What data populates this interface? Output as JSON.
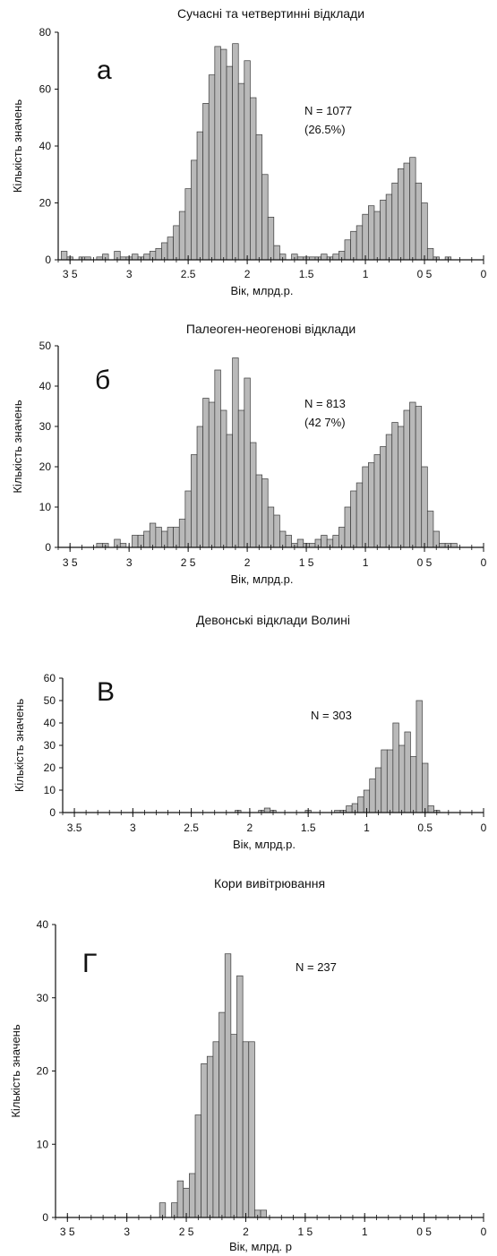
{
  "colors": {
    "bar_fill": "#b9b9b9",
    "bar_edge": "#3a3a3a",
    "axis": "#111111"
  },
  "chart_data": [
    {
      "type": "bar",
      "panel_letter": "а",
      "title": "Сучасні та четвертинні відклади",
      "xlabel": "Вік, млрд.р.",
      "ylabel": "Кількість значень",
      "xlim": [
        3.6,
        0
      ],
      "ylim": [
        0,
        80
      ],
      "xticks": [
        3.5,
        3,
        2.5,
        2,
        1.5,
        1,
        0.5,
        0
      ],
      "xtick_labels": [
        "3 5",
        "3",
        "2.5",
        "2",
        "1.5",
        "1",
        "0 5",
        "0"
      ],
      "yticks": [
        0,
        20,
        40,
        60,
        80
      ],
      "ytick_labels": [
        "0",
        "20",
        "40",
        "60",
        "80"
      ],
      "annotation": [
        "N = 1077",
        "(26.5%)"
      ],
      "x": [
        3.55,
        3.5,
        3.45,
        3.4,
        3.35,
        3.3,
        3.25,
        3.2,
        3.15,
        3.1,
        3.05,
        3.0,
        2.95,
        2.9,
        2.85,
        2.8,
        2.75,
        2.7,
        2.65,
        2.6,
        2.55,
        2.5,
        2.45,
        2.4,
        2.35,
        2.3,
        2.25,
        2.2,
        2.15,
        2.1,
        2.05,
        2.0,
        1.95,
        1.9,
        1.85,
        1.8,
        1.75,
        1.7,
        1.65,
        1.6,
        1.55,
        1.5,
        1.45,
        1.4,
        1.35,
        1.3,
        1.25,
        1.2,
        1.15,
        1.1,
        1.05,
        1.0,
        0.95,
        0.9,
        0.85,
        0.8,
        0.75,
        0.7,
        0.65,
        0.6,
        0.55,
        0.5,
        0.45,
        0.4,
        0.35,
        0.3,
        0.25,
        0.2,
        0.15
      ],
      "values": [
        3,
        1,
        0,
        1,
        1,
        0,
        1,
        2,
        0,
        3,
        1,
        1,
        2,
        1,
        2,
        3,
        4,
        6,
        8,
        12,
        17,
        25,
        35,
        45,
        55,
        65,
        75,
        74,
        68,
        76,
        62,
        70,
        57,
        44,
        30,
        15,
        5,
        2,
        0,
        2,
        1,
        1,
        1,
        1,
        2,
        1,
        2,
        3,
        7,
        10,
        12,
        16,
        19,
        17,
        21,
        23,
        27,
        32,
        34,
        36,
        27,
        20,
        4,
        1,
        0,
        1,
        0,
        0,
        0
      ]
    },
    {
      "type": "bar",
      "panel_letter": "б",
      "title": "Палеоген-неогенові відклади",
      "xlabel": "Вік, млрд.р.",
      "ylabel": "Кількість значень",
      "xlim": [
        3.6,
        0
      ],
      "ylim": [
        0,
        50
      ],
      "xticks": [
        3.5,
        3,
        2.5,
        2,
        1.5,
        1,
        0.5,
        0
      ],
      "xtick_labels": [
        "3 5",
        "3",
        "2 5",
        "2",
        "1 5",
        "1",
        "0 5",
        "0"
      ],
      "yticks": [
        0,
        10,
        20,
        30,
        40,
        50
      ],
      "ytick_labels": [
        "0",
        "10",
        "20",
        "30",
        "40",
        "50"
      ],
      "annotation": [
        "N = 813",
        "(42 7%)"
      ],
      "x": [
        3.55,
        3.5,
        3.45,
        3.4,
        3.35,
        3.3,
        3.25,
        3.2,
        3.15,
        3.1,
        3.05,
        3.0,
        2.95,
        2.9,
        2.85,
        2.8,
        2.75,
        2.7,
        2.65,
        2.6,
        2.55,
        2.5,
        2.45,
        2.4,
        2.35,
        2.3,
        2.25,
        2.2,
        2.15,
        2.1,
        2.05,
        2.0,
        1.95,
        1.9,
        1.85,
        1.8,
        1.75,
        1.7,
        1.65,
        1.6,
        1.55,
        1.5,
        1.45,
        1.4,
        1.35,
        1.3,
        1.25,
        1.2,
        1.15,
        1.1,
        1.05,
        1.0,
        0.95,
        0.9,
        0.85,
        0.8,
        0.75,
        0.7,
        0.65,
        0.6,
        0.55,
        0.5,
        0.45,
        0.4,
        0.35,
        0.3,
        0.25,
        0.2
      ],
      "values": [
        0,
        0,
        0,
        0,
        0,
        0,
        1,
        1,
        0,
        2,
        1,
        0,
        3,
        3,
        4,
        6,
        5,
        4,
        5,
        5,
        7,
        14,
        23,
        30,
        37,
        36,
        44,
        34,
        28,
        47,
        34,
        42,
        26,
        18,
        17,
        10,
        8,
        4,
        3,
        1,
        2,
        1,
        1,
        2,
        3,
        2,
        3,
        5,
        10,
        14,
        16,
        20,
        21,
        23,
        25,
        28,
        31,
        30,
        34,
        36,
        35,
        20,
        9,
        4,
        1,
        1,
        1,
        0
      ]
    },
    {
      "type": "bar",
      "panel_letter": "В",
      "title": "Девонські відклади Волині",
      "xlabel": "Вік, млрд.р.",
      "ylabel": "Кількість значень",
      "xlim": [
        3.6,
        0
      ],
      "ylim": [
        0,
        60
      ],
      "xticks": [
        3.5,
        3,
        2.5,
        2,
        1.5,
        1,
        0.5,
        0
      ],
      "xtick_labels": [
        "3.5",
        "3",
        "2.5",
        "2",
        "1.5",
        "1",
        "0.5",
        "0"
      ],
      "yticks": [
        0,
        10,
        20,
        30,
        40,
        50,
        60
      ],
      "ytick_labels": [
        "0",
        "10",
        "20",
        "30",
        "40",
        "50",
        "60"
      ],
      "annotation": [
        "N = 303"
      ],
      "x": [
        3.55,
        3.5,
        3.45,
        3.4,
        3.35,
        3.3,
        3.25,
        3.2,
        3.15,
        3.1,
        3.05,
        3.0,
        2.95,
        2.9,
        2.85,
        2.8,
        2.75,
        2.7,
        2.65,
        2.6,
        2.55,
        2.5,
        2.45,
        2.4,
        2.35,
        2.3,
        2.25,
        2.2,
        2.15,
        2.1,
        2.05,
        2.0,
        1.95,
        1.9,
        1.85,
        1.8,
        1.75,
        1.7,
        1.65,
        1.6,
        1.55,
        1.5,
        1.45,
        1.4,
        1.35,
        1.3,
        1.25,
        1.2,
        1.15,
        1.1,
        1.05,
        1.0,
        0.95,
        0.9,
        0.85,
        0.8,
        0.75,
        0.7,
        0.65,
        0.6,
        0.55,
        0.5,
        0.45,
        0.4,
        0.35,
        0.3
      ],
      "values": [
        0,
        0,
        0,
        0,
        0,
        0,
        0,
        0,
        0,
        0,
        0,
        0,
        0,
        0,
        0,
        0,
        0,
        0,
        0,
        0,
        0,
        0,
        0,
        0,
        0,
        0,
        0,
        0,
        0,
        1,
        0,
        0,
        0,
        1,
        2,
        1,
        0,
        0,
        0,
        0,
        0,
        1,
        0,
        0,
        0,
        0,
        1,
        1,
        3,
        4,
        7,
        10,
        15,
        20,
        28,
        28,
        40,
        30,
        36,
        25,
        50,
        22,
        3,
        1,
        0,
        0
      ]
    },
    {
      "type": "bar",
      "panel_letter": "Г",
      "title": "Кори вивітрювання",
      "xlabel": "Вік, млрд. р",
      "ylabel": "Кількість значень",
      "xlim": [
        3.6,
        0
      ],
      "ylim": [
        0,
        40
      ],
      "xticks": [
        3.5,
        3,
        2.5,
        2,
        1.5,
        1,
        0.5,
        0
      ],
      "xtick_labels": [
        "3 5",
        "3",
        "2 5",
        "2",
        "1 5",
        "1",
        "0 5",
        "0"
      ],
      "yticks": [
        0,
        10,
        20,
        30,
        40
      ],
      "ytick_labels": [
        "0",
        "10",
        "20",
        "30",
        "40"
      ],
      "annotation": [
        "N = 237"
      ],
      "x": [
        2.75,
        2.7,
        2.65,
        2.6,
        2.55,
        2.5,
        2.45,
        2.4,
        2.35,
        2.3,
        2.25,
        2.2,
        2.15,
        2.1,
        2.05,
        2.0,
        1.95,
        1.9,
        1.85,
        1.8
      ],
      "values": [
        0,
        2,
        0,
        2,
        5,
        4,
        6,
        14,
        21,
        22,
        24,
        28,
        36,
        25,
        33,
        24,
        24,
        1,
        1,
        0
      ]
    }
  ]
}
